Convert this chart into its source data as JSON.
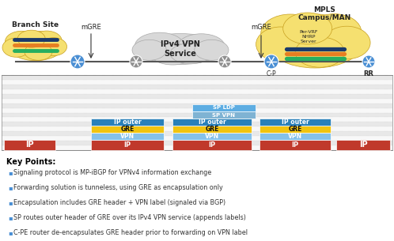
{
  "bg_color": "#ffffff",
  "diagram": {
    "branch_label": "Branch Site",
    "mgre_left_label": "mGRE",
    "ipv4_vpn_label": "IPv4 VPN\nService",
    "mgre_right_label": "mGRE",
    "mpls_label": "MPLS\nCampus/MAN",
    "cp_label": "C-P",
    "rr_label": "RR",
    "pervrf_label": "Per-VRF\nNHRP\nServer"
  },
  "packet_rows": {
    "ip_color": "#c0392b",
    "gre_color": "#f1c40f",
    "vpn_color": "#85c1e9",
    "ipouter_color": "#2980b9",
    "spldp_color": "#5dade2",
    "spvpn_color": "#7fb3d3"
  },
  "key_points": [
    "Signaling protocol is MP-iBGP for VPNv4 information exchange",
    "Forwarding solution is tunneless, using GRE as encapsulation only",
    "Encapsulation includes GRE header + VPN label (signaled via BGP)",
    "SP routes outer header of GRE over its IPv4 VPN service (appends labels)",
    "C-PE router de-encapsulates GRE header prior to forwarding on VPN label"
  ],
  "stripe_colors": [
    "#e8e8e8",
    "#f8f8f8"
  ],
  "branch_blob_color": "#f5e070",
  "campus_blob_color": "#f5e070",
  "cloud_color": "#d8d8d8",
  "router_blue": "#4a8fd4",
  "router_gray": "#909090",
  "line_colors": [
    "#1a3a6b",
    "#e67e22",
    "#27ae60"
  ],
  "arrow_color": "#333333",
  "text_dark": "#222222",
  "bullet_color": "#4a8fd4"
}
